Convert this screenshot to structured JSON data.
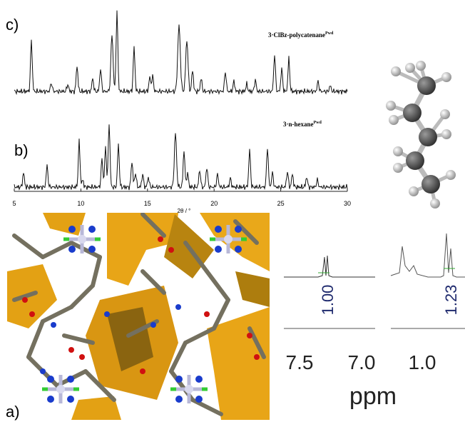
{
  "panels": {
    "c": {
      "label": "c)",
      "trace_label": "3·ClBz-polycatenane",
      "trace_sup": "Pwd"
    },
    "b": {
      "label": "b)",
      "trace_label": "3·n-hexane",
      "trace_sup": "Pwd"
    },
    "pxrd_axis": {
      "ticks": [
        "5",
        "10",
        "15",
        "20",
        "25",
        "30"
      ],
      "title": "2θ / °"
    },
    "a": {
      "label": "a)"
    },
    "nmr": {
      "integrals": [
        "1.00",
        "1.23"
      ],
      "ticks": [
        "7.5",
        "7.0",
        "1.0"
      ],
      "axis_title": "ppm"
    }
  }
}
